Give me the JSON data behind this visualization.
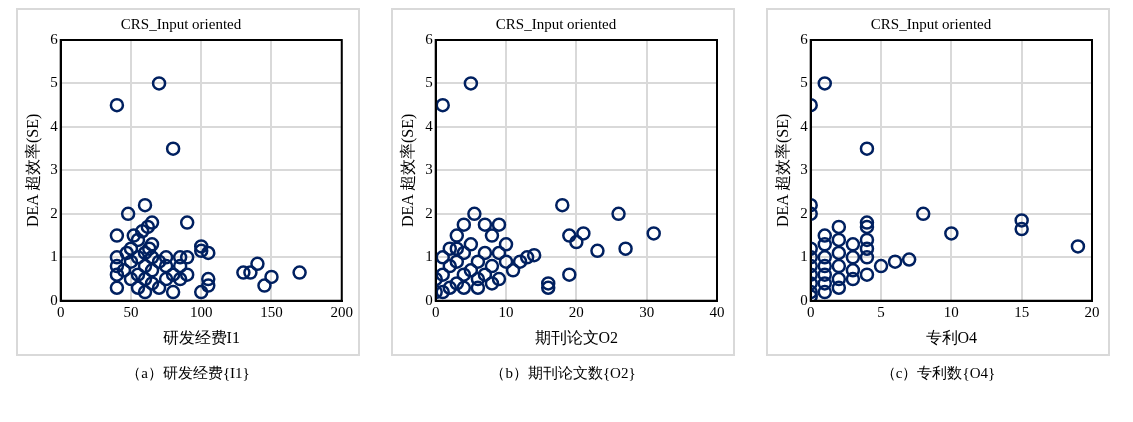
{
  "chart_data": [
    {
      "type": "scatter",
      "title": "CRS_Input oriented",
      "xlabel": "研发经费I1",
      "ylabel": "DEA 超效率(SE)",
      "annotations": [
        "（a）研发经费{I1}"
      ],
      "xlim": [
        0,
        200
      ],
      "xticks": [
        0,
        50,
        100,
        150,
        200
      ],
      "ylim": [
        0,
        6
      ],
      "yticks": [
        0,
        1,
        2,
        3,
        4,
        5,
        6
      ],
      "grid": true,
      "legend": false,
      "marker": "circle",
      "series": [
        {
          "color": "#002060",
          "x": [
            40,
            70,
            80,
            60,
            48,
            40,
            65,
            62,
            90,
            100,
            100,
            105,
            85,
            75,
            140,
            130,
            135,
            150,
            170,
            145,
            105,
            100,
            80,
            40,
            40,
            40,
            40,
            45,
            50,
            50,
            50,
            55,
            55,
            55,
            55,
            60,
            60,
            60,
            60,
            65,
            65,
            65,
            65,
            70,
            70,
            75,
            75,
            80,
            85,
            85,
            90,
            90,
            105,
            47,
            52,
            58,
            63
          ],
          "values": [
            4.5,
            5,
            3.5,
            2.2,
            2,
            1.5,
            1.8,
            1.7,
            1.8,
            1.25,
            1.15,
            1.1,
            1.0,
            1.0,
            0.85,
            0.65,
            0.65,
            0.55,
            0.65,
            0.35,
            0.35,
            0.2,
            0.2,
            0.3,
            0.6,
            0.8,
            1.0,
            0.7,
            0.5,
            0.9,
            1.2,
            0.3,
            0.6,
            1.0,
            1.4,
            0.2,
            0.5,
            0.8,
            1.1,
            0.4,
            0.7,
            1.0,
            1.3,
            0.3,
            0.9,
            0.5,
            0.8,
            0.6,
            0.5,
            0.8,
            0.6,
            1.0,
            0.5,
            1.1,
            1.5,
            1.6,
            1.2
          ]
        }
      ]
    },
    {
      "type": "scatter",
      "title": "CRS_Input oriented",
      "xlabel": "期刊论文O2",
      "ylabel": "DEA 超效率(SE)",
      "annotations": [
        "（b）期刊论文数{O2}"
      ],
      "xlim": [
        0,
        40
      ],
      "xticks": [
        0,
        10,
        20,
        30,
        40
      ],
      "ylim": [
        0,
        6
      ],
      "yticks": [
        0,
        1,
        2,
        3,
        4,
        5,
        6
      ],
      "grid": true,
      "legend": false,
      "marker": "circle",
      "series": [
        {
          "color": "#002060",
          "x": [
            1,
            5,
            4,
            3,
            5.5,
            7,
            9,
            8,
            10,
            2,
            1,
            0,
            0,
            1,
            2,
            3,
            3,
            4,
            4,
            5,
            5,
            6,
            6,
            7,
            7,
            8,
            9,
            10,
            11,
            12,
            13,
            14,
            2,
            1,
            4,
            6,
            8,
            9,
            16,
            16,
            19,
            18,
            19,
            21,
            20,
            23,
            26,
            27,
            31,
            3
          ],
          "values": [
            4.5,
            5,
            1.75,
            1.5,
            2.0,
            1.75,
            1.75,
            1.5,
            1.3,
            1.2,
            1.0,
            0.5,
            0.2,
            0.6,
            0.8,
            0.9,
            0.4,
            0.6,
            1.1,
            0.7,
            1.3,
            0.5,
            0.9,
            0.6,
            1.1,
            0.8,
            0.5,
            0.9,
            0.7,
            0.9,
            1.0,
            1.05,
            0.3,
            0.2,
            0.3,
            0.3,
            0.4,
            1.1,
            0.4,
            0.3,
            0.6,
            2.2,
            1.5,
            1.55,
            1.35,
            1.15,
            2.0,
            1.2,
            1.55,
            1.2
          ]
        }
      ]
    },
    {
      "type": "scatter",
      "title": "CRS_Input oriented",
      "xlabel": "专利O4",
      "ylabel": "DEA 超效率(SE)",
      "annotations": [
        "（c）专利数{O4}"
      ],
      "xlim": [
        0,
        20
      ],
      "xticks": [
        0,
        5,
        10,
        15,
        20
      ],
      "ylim": [
        0,
        6
      ],
      "yticks": [
        0,
        1,
        2,
        3,
        4,
        5,
        6
      ],
      "grid": true,
      "legend": false,
      "marker": "circle",
      "series": [
        {
          "color": "#002060",
          "x": [
            0,
            1,
            4,
            0,
            0,
            4,
            4,
            8,
            10,
            15,
            15,
            19,
            6,
            7,
            5,
            4,
            4,
            4,
            3,
            3,
            3,
            2,
            2,
            2,
            2,
            2,
            1,
            1,
            1,
            1,
            1,
            1,
            1,
            0,
            0,
            0,
            0,
            0,
            0,
            0,
            2,
            3,
            4
          ],
          "values": [
            4.5,
            5,
            3.5,
            2.2,
            2.0,
            1.8,
            1.7,
            2.0,
            1.55,
            1.85,
            1.65,
            1.25,
            0.9,
            0.95,
            0.8,
            1.0,
            1.2,
            1.4,
            1.3,
            1.0,
            0.7,
            1.7,
            1.4,
            1.1,
            0.8,
            0.5,
            1.5,
            1.3,
            1.0,
            0.8,
            0.6,
            0.4,
            0.2,
            1.2,
            1.0,
            0.8,
            0.6,
            0.4,
            0.2,
            0.1,
            0.3,
            0.5,
            0.6
          ]
        }
      ]
    }
  ]
}
